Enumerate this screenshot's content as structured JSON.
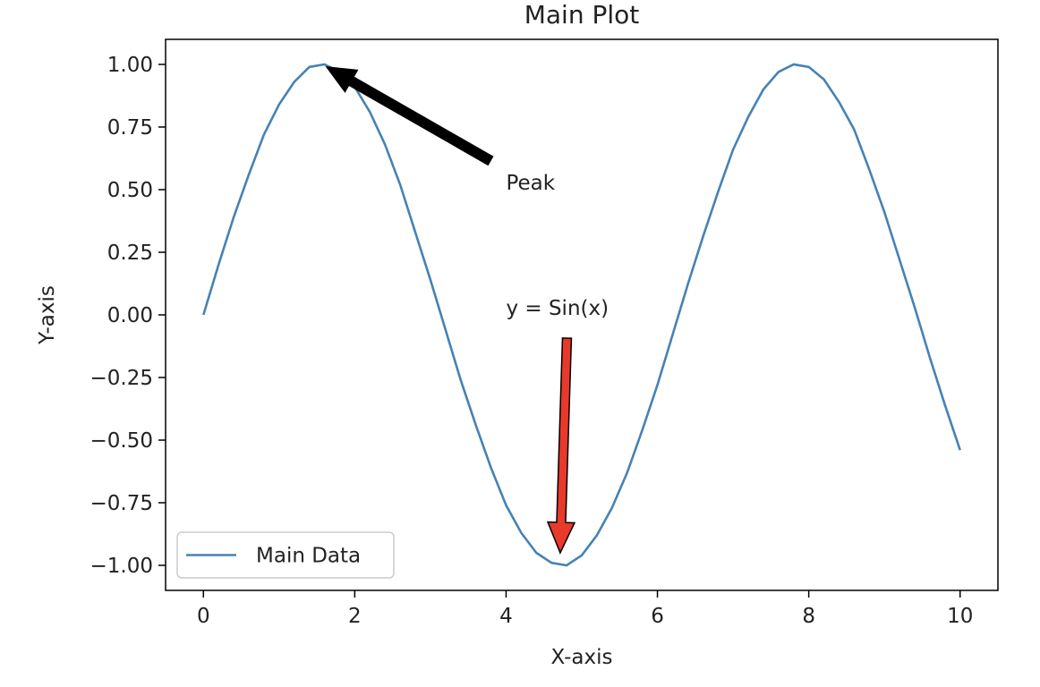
{
  "chart_data": {
    "type": "line",
    "title": "Main Plot",
    "x_label": "X-axis",
    "y_label": "Y-axis",
    "x": [
      0,
      0.2,
      0.4,
      0.6,
      0.8,
      1.0,
      1.2,
      1.4,
      1.6,
      1.8,
      2.0,
      2.2,
      2.4,
      2.6,
      2.8,
      3.0,
      3.2,
      3.4,
      3.6,
      3.8,
      4.0,
      4.2,
      4.4,
      4.6,
      4.8,
      5.0,
      5.2,
      5.4,
      5.6,
      5.8,
      6.0,
      6.2,
      6.4,
      6.6,
      6.8,
      7.0,
      7.2,
      7.4,
      7.6,
      7.8,
      8.0,
      8.2,
      8.4,
      8.6,
      8.8,
      9.0,
      9.2,
      9.4,
      9.6,
      9.8,
      10.0
    ],
    "series": [
      {
        "name": "Main Data",
        "color": "#4682b4",
        "values": [
          0.0,
          0.2,
          0.39,
          0.56,
          0.72,
          0.84,
          0.93,
          0.99,
          1.0,
          0.97,
          0.91,
          0.81,
          0.68,
          0.52,
          0.33,
          0.14,
          -0.06,
          -0.26,
          -0.44,
          -0.61,
          -0.76,
          -0.87,
          -0.95,
          -0.99,
          -1.0,
          -0.96,
          -0.88,
          -0.77,
          -0.63,
          -0.46,
          -0.28,
          -0.08,
          0.12,
          0.31,
          0.49,
          0.66,
          0.79,
          0.9,
          0.97,
          1.0,
          0.99,
          0.94,
          0.85,
          0.74,
          0.58,
          0.41,
          0.22,
          0.03,
          -0.17,
          -0.36,
          -0.54
        ]
      }
    ],
    "xlim": [
      -0.5,
      10.5
    ],
    "ylim": [
      -1.1,
      1.1
    ],
    "xticks": [
      0,
      2,
      4,
      6,
      8,
      10
    ],
    "yticks": [
      {
        "value": -1,
        "label": "−1.00"
      },
      {
        "value": -0.75,
        "label": "−0.75"
      },
      {
        "value": -0.5,
        "label": "−0.50"
      },
      {
        "value": -0.25,
        "label": "−0.25"
      },
      {
        "value": 0,
        "label": "0.00"
      },
      {
        "value": 0.25,
        "label": "0.25"
      },
      {
        "value": 0.5,
        "label": "0.50"
      },
      {
        "value": 0.75,
        "label": "0.75"
      },
      {
        "value": 1,
        "label": "1.00"
      }
    ],
    "grid": false,
    "legend": "lower left",
    "annotations": [
      {
        "text": "Peak",
        "xy": [
          1.57,
          1
        ],
        "xytext": [
          4,
          0.5
        ],
        "color": "#000000"
      },
      {
        "text": "y = Sin(x)",
        "xy": [
          4.71,
          -1
        ],
        "xytext": [
          4,
          0
        ],
        "color": "#e8392a"
      }
    ]
  }
}
